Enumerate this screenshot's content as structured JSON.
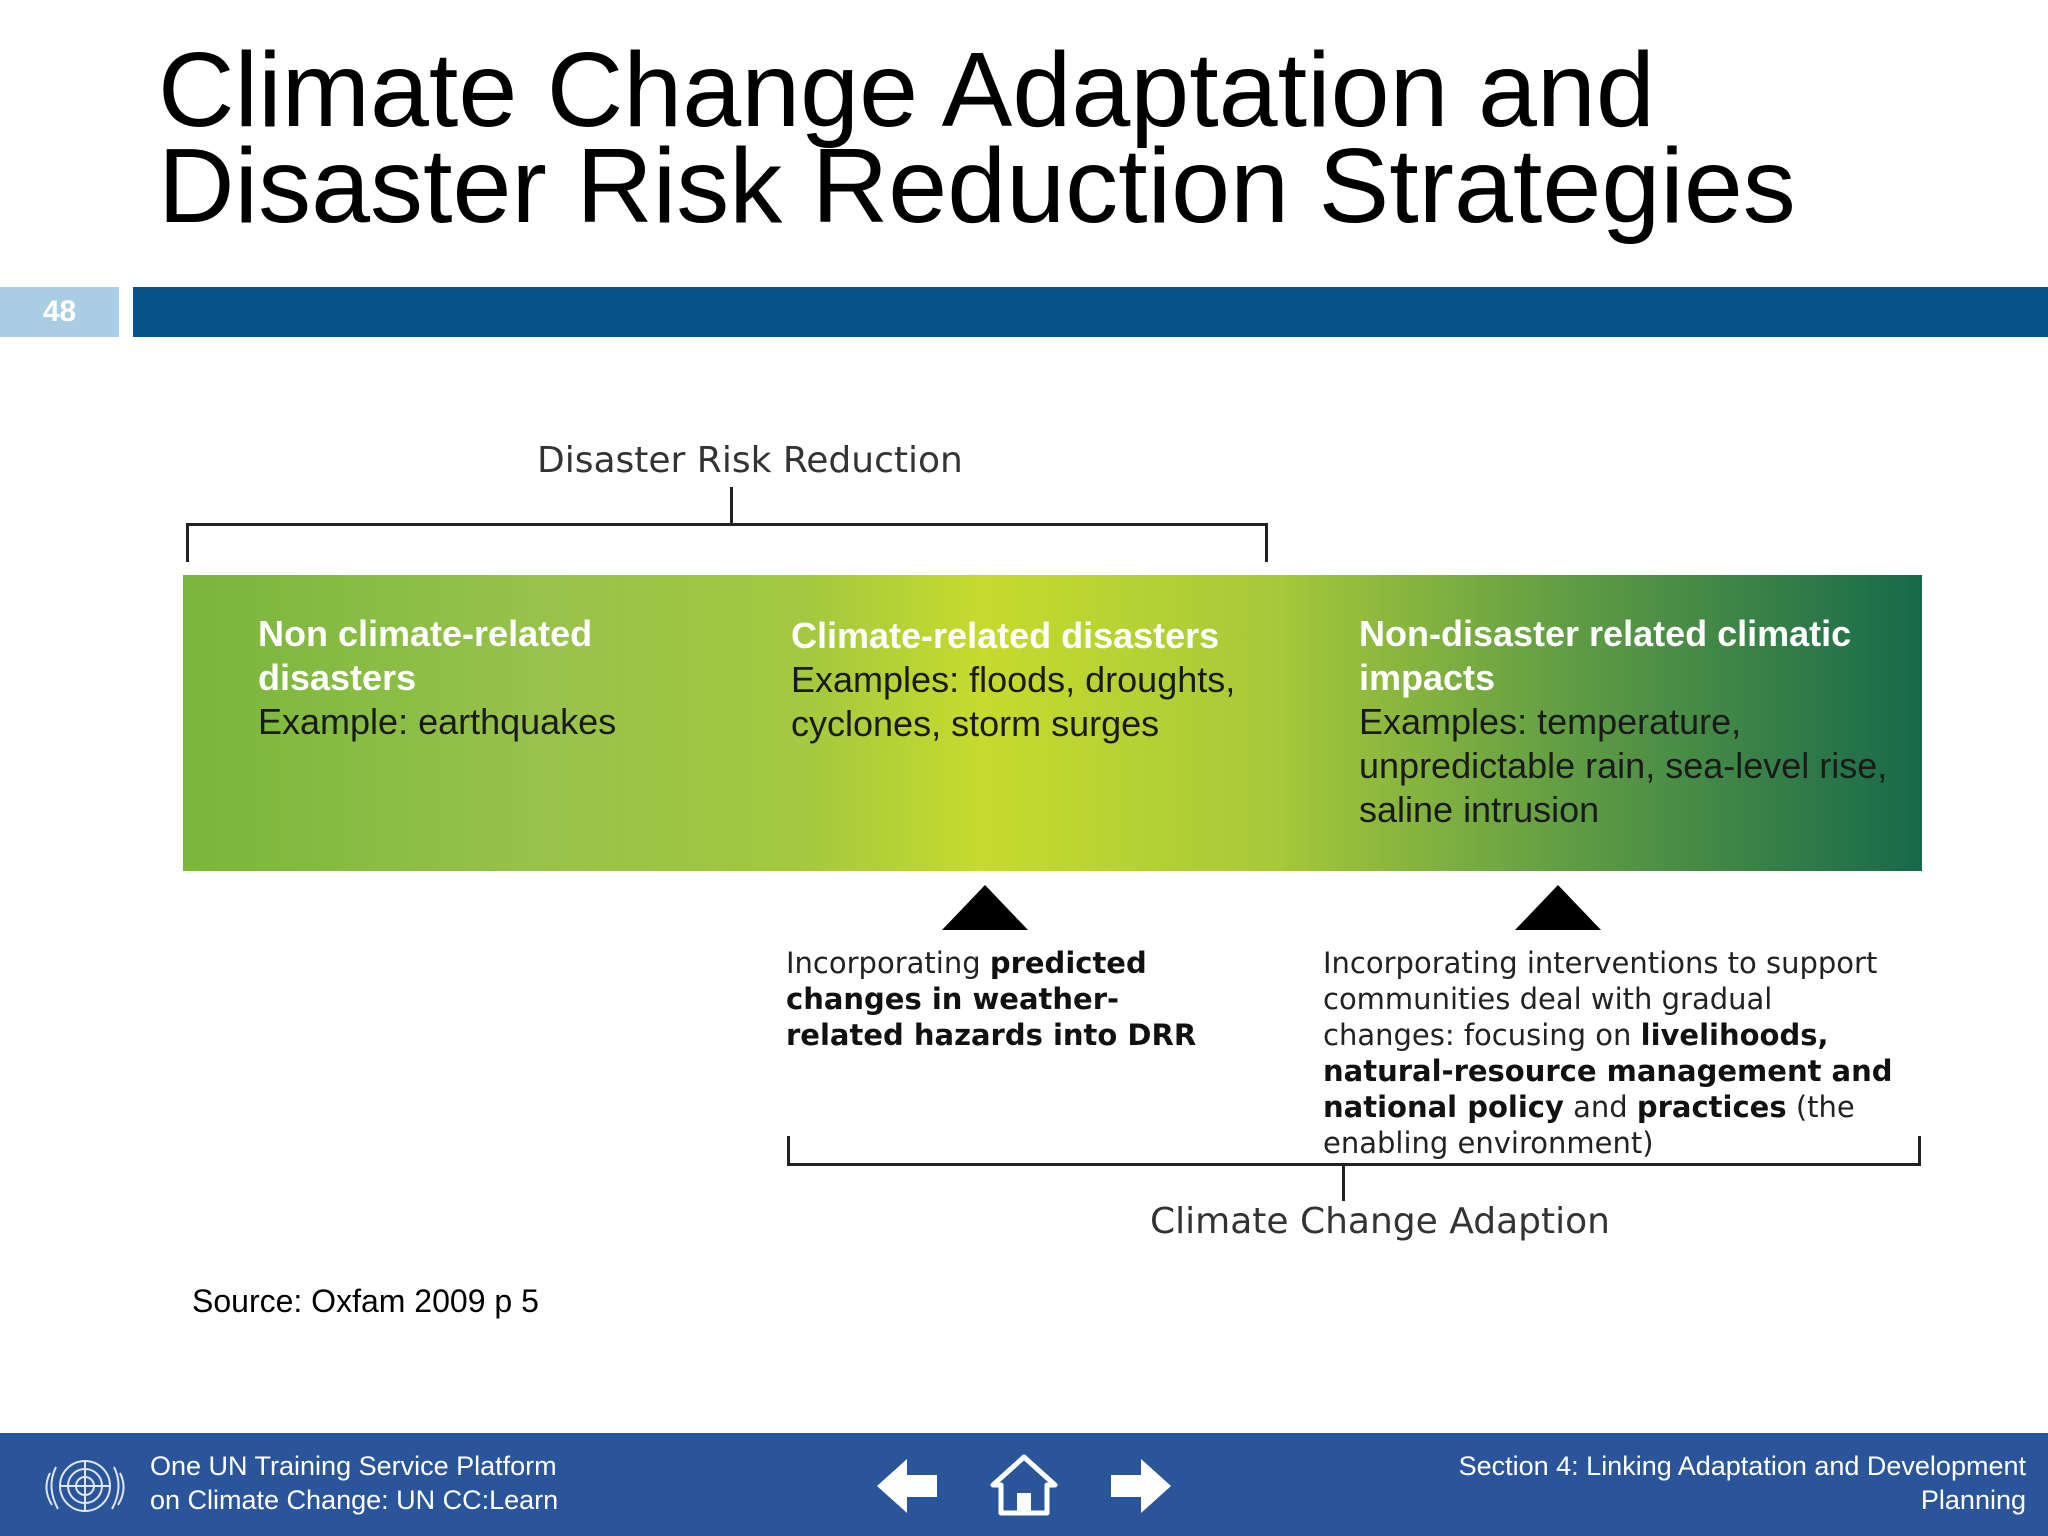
{
  "slide": {
    "title_line1": "Climate Change Adaptation and",
    "title_line2": "Disaster Risk Reduction Strategies",
    "number": "48"
  },
  "diagram": {
    "top_bracket_label": "Disaster Risk Reduction",
    "bottom_bracket_label": "Climate Change Adaption",
    "columns": [
      {
        "heading": "Non climate-related disasters",
        "body": "Example: earthquakes"
      },
      {
        "heading": "Climate-related disasters",
        "body": "Examples: floods, droughts, cyclones, storm surges"
      },
      {
        "heading": "Non-disaster related climatic impacts",
        "body": "Examples: temperature, unpredictable rain, sea-level rise, saline intrusion"
      }
    ],
    "note_left": {
      "part1": "Incorporating ",
      "bold1": "predicted changes in weather-related hazards into DRR"
    },
    "note_right": {
      "part1": "Incorporating interventions to  support communities deal with gradual changes: focusing on ",
      "bold1": "livelihoods, natural-resource management and national policy",
      "part2": " and ",
      "bold2": "practices",
      "part3": " (the enabling environment)"
    },
    "colors": {
      "band_left": "#79b63c",
      "band_mid": "#c6db2d",
      "band_right": "#17694a"
    }
  },
  "source": "Source: Oxfam 2009 p 5",
  "footer": {
    "left_line1": "One UN Training Service Platform",
    "left_line2": "on Climate Change: UN CC:Learn",
    "right_line1": "Section 4: Linking Adaptation and Development",
    "right_line2": "Planning",
    "icons": [
      "un-emblem-icon",
      "arrow-left-icon",
      "home-icon",
      "arrow-right-icon"
    ],
    "color": "#2b559b"
  }
}
